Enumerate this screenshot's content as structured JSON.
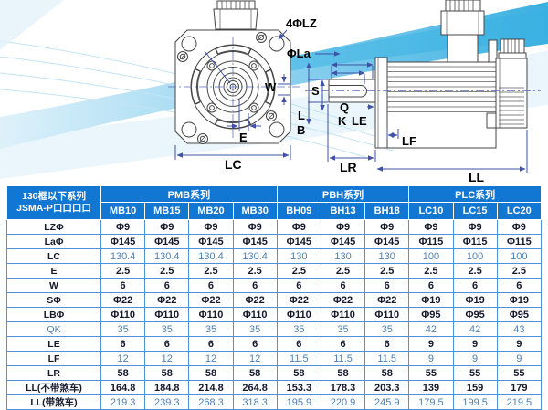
{
  "diagram": {
    "labels": {
      "lz": "4ΦLZ",
      "la": "ΦLa",
      "w": "W",
      "e": "E",
      "lc": "LC",
      "lb_top": "L",
      "lb_bottom": "B",
      "s": "S",
      "q": "Q",
      "k": "K",
      "le": "LE",
      "lf": "LF",
      "lr": "LR",
      "ll": "LL"
    },
    "accent_color": "#2aa9de",
    "dimension_line_color": "#3f52a6"
  },
  "table": {
    "corner_title_line1": "130框以下系列",
    "corner_title_line2": "JSMA-P口口口口",
    "header_bg": "#1277d3",
    "grid_color": "#4e91d9",
    "blue_text_color": "#4b7fb5",
    "groups": [
      {
        "label": "PMB系列",
        "cols": [
          "MB10",
          "MB15",
          "MB20",
          "MB30"
        ]
      },
      {
        "label": "PBH系列",
        "cols": [
          "BH09",
          "BH13",
          "BH18"
        ]
      },
      {
        "label": "PLC系列",
        "cols": [
          "LC10",
          "LC15",
          "LC20"
        ]
      }
    ],
    "rows": [
      {
        "label": "LZΦ",
        "c": "dark",
        "values": [
          "Φ9",
          "Φ9",
          "Φ9",
          "Φ9",
          "Φ9",
          "Φ9",
          "Φ9",
          "Φ9",
          "Φ9",
          "Φ9"
        ]
      },
      {
        "label": "LaΦ",
        "c": "dark",
        "values": [
          "Φ145",
          "Φ145",
          "Φ145",
          "Φ145",
          "Φ145",
          "Φ145",
          "Φ145",
          "Φ115",
          "Φ115",
          "Φ115"
        ]
      },
      {
        "label": "LC",
        "c": "blue",
        "values": [
          "130.4",
          "130.4",
          "130.4",
          "130.4",
          "130",
          "130",
          "130",
          "100",
          "100",
          "100"
        ]
      },
      {
        "label": "E",
        "c": "dark",
        "values": [
          "2.5",
          "2.5",
          "2.5",
          "2.5",
          "2.5",
          "2.5",
          "2.5",
          "2.5",
          "2.5",
          "2.5"
        ]
      },
      {
        "label": "W",
        "c": "dark",
        "values": [
          "6",
          "6",
          "6",
          "6",
          "6",
          "6",
          "6",
          "6",
          "6",
          "6"
        ]
      },
      {
        "label": "SΦ",
        "c": "dark",
        "values": [
          "Φ22",
          "Φ22",
          "Φ22",
          "Φ22",
          "Φ22",
          "Φ22",
          "Φ22",
          "Φ19",
          "Φ19",
          "Φ19"
        ]
      },
      {
        "label": "LBΦ",
        "c": "dark",
        "values": [
          "Φ110",
          "Φ110",
          "Φ110",
          "Φ110",
          "Φ110",
          "Φ110",
          "Φ110",
          "Φ95",
          "Φ95",
          "Φ95"
        ]
      },
      {
        "label": "QK",
        "c": "blue",
        "label_blue": true,
        "values": [
          "35",
          "35",
          "35",
          "35",
          "35",
          "35",
          "35",
          "42",
          "42",
          "43"
        ]
      },
      {
        "label": "LE",
        "c": "dark",
        "values": [
          "6",
          "6",
          "6",
          "6",
          "6",
          "6",
          "6",
          "9",
          "9",
          "9"
        ]
      },
      {
        "label": "LF",
        "c": "blue",
        "values": [
          "12",
          "12",
          "12",
          "12",
          "11.5",
          "11.5",
          "11.5",
          "9",
          "9",
          "9"
        ]
      },
      {
        "label": "LR",
        "c": "dark",
        "values": [
          "58",
          "58",
          "58",
          "58",
          "58",
          "58",
          "58",
          "55",
          "55",
          "55"
        ]
      },
      {
        "label": "LL(不带煞车)",
        "c": "dark",
        "values": [
          "164.8",
          "184.8",
          "214.8",
          "264.8",
          "153.3",
          "178.3",
          "203.3",
          "139",
          "159",
          "179"
        ]
      },
      {
        "label": "LL(带煞车)",
        "c": "blue",
        "values": [
          "219.3",
          "239.3",
          "268.3",
          "318.3",
          "195.9",
          "220.9",
          "245.9",
          "179.5",
          "199.5",
          "219.5"
        ]
      }
    ]
  }
}
